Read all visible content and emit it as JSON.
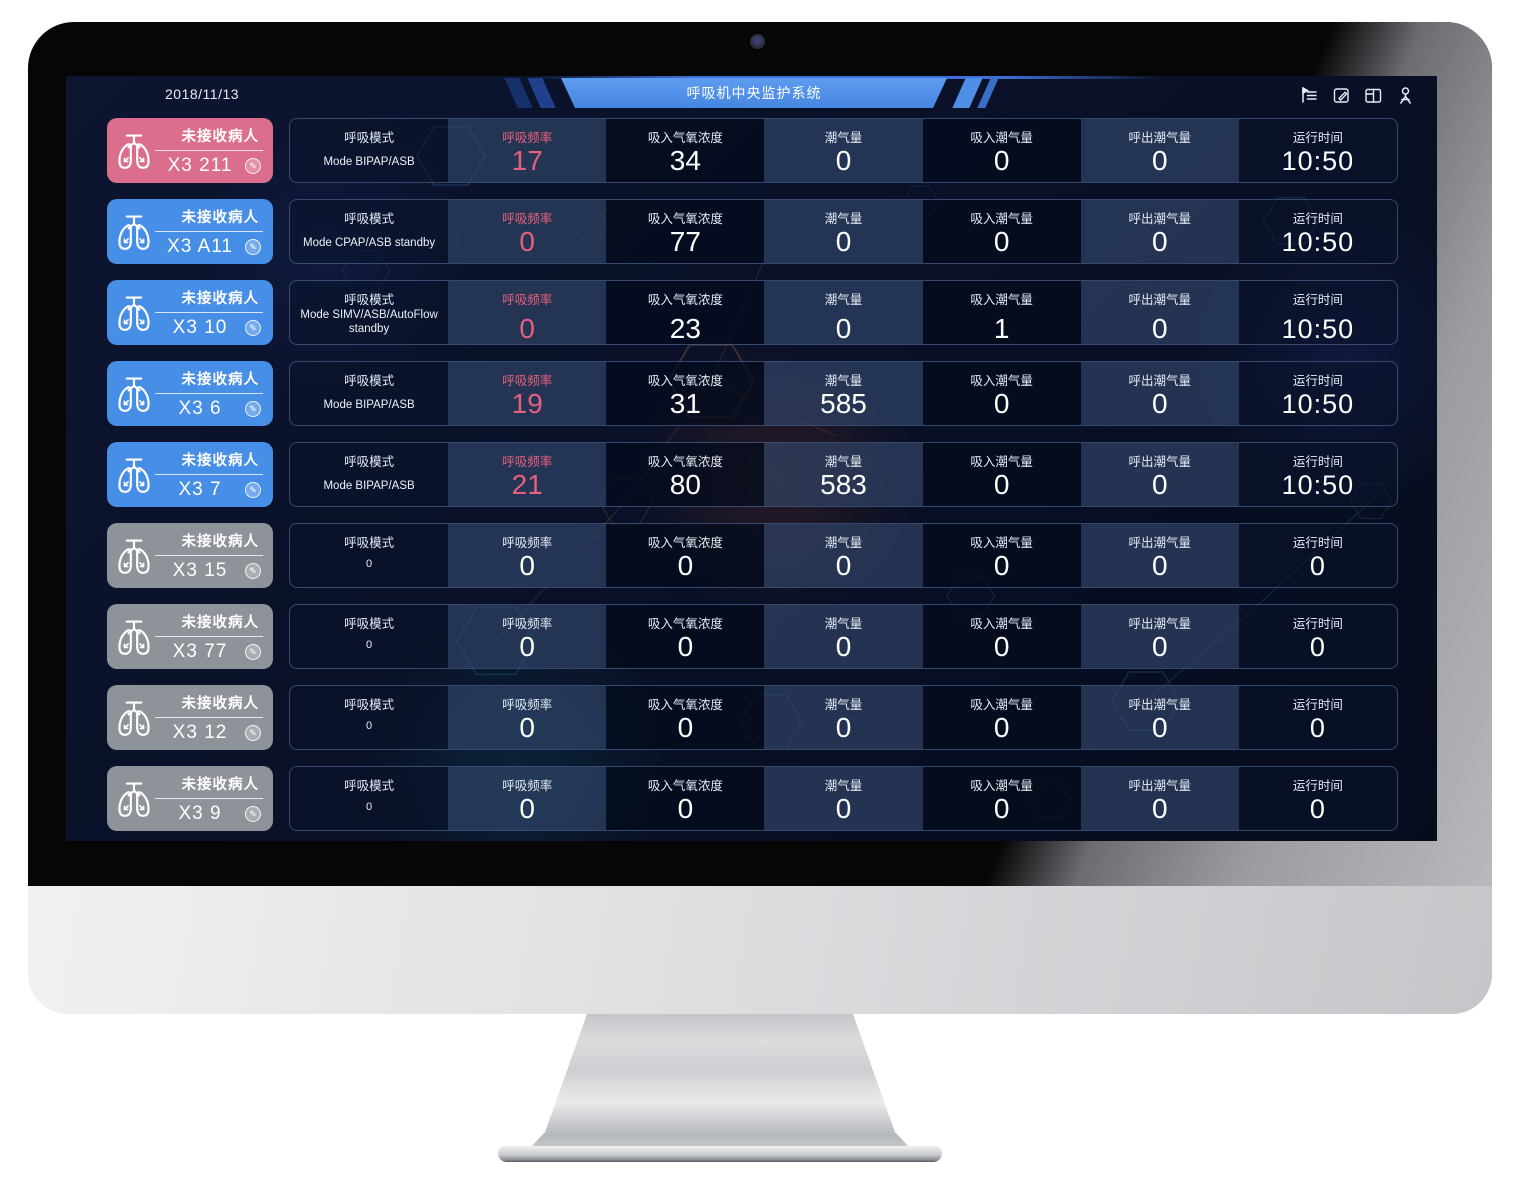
{
  "window": {
    "date": "2018/11/13",
    "title": "呼吸机中央监护系统"
  },
  "toolbar": {
    "icons": [
      "outline-menu-icon",
      "edit-document-icon",
      "layout-columns-icon",
      "user-icon"
    ]
  },
  "icons": {
    "edit_glyph": "✎"
  },
  "table": {
    "columns": [
      {
        "key": "mode",
        "label": "呼吸模式"
      },
      {
        "key": "rate",
        "label": "呼吸频率"
      },
      {
        "key": "fio2",
        "label": "吸入气氧浓度"
      },
      {
        "key": "vt",
        "label": "潮气量"
      },
      {
        "key": "vti",
        "label": "吸入潮气量"
      },
      {
        "key": "vte",
        "label": "呼出潮气量"
      },
      {
        "key": "runtime",
        "label": "运行时间"
      }
    ],
    "rows": [
      {
        "device_id": "X3 211",
        "status": "未接收病人",
        "state": "alarm",
        "mode": "Mode BIPAP/ASB",
        "rate": "17",
        "fio2": "34",
        "vt": "0",
        "vti": "0",
        "vte": "0",
        "runtime": "10:50"
      },
      {
        "device_id": "X3 A11",
        "status": "未接收病人",
        "state": "online",
        "mode": "Mode CPAP/ASB standby",
        "rate": "0",
        "fio2": "77",
        "vt": "0",
        "vti": "0",
        "vte": "0",
        "runtime": "10:50"
      },
      {
        "device_id": "X3 10",
        "status": "未接收病人",
        "state": "online",
        "mode": "Mode SIMV/ASB/AutoFlow standby",
        "rate": "0",
        "fio2": "23",
        "vt": "0",
        "vti": "1",
        "vte": "0",
        "runtime": "10:50"
      },
      {
        "device_id": "X3 6",
        "status": "未接收病人",
        "state": "online",
        "mode": "Mode BIPAP/ASB",
        "rate": "19",
        "fio2": "31",
        "vt": "585",
        "vti": "0",
        "vte": "0",
        "runtime": "10:50"
      },
      {
        "device_id": "X3 7",
        "status": "未接收病人",
        "state": "online",
        "mode": "Mode BIPAP/ASB",
        "rate": "21",
        "fio2": "80",
        "vt": "583",
        "vti": "0",
        "vte": "0",
        "runtime": "10:50"
      },
      {
        "device_id": "X3 15",
        "status": "未接收病人",
        "state": "offline",
        "mode": "0",
        "rate": "0",
        "fio2": "0",
        "vt": "0",
        "vti": "0",
        "vte": "0",
        "runtime": "0"
      },
      {
        "device_id": "X3 77",
        "status": "未接收病人",
        "state": "offline",
        "mode": "0",
        "rate": "0",
        "fio2": "0",
        "vt": "0",
        "vti": "0",
        "vte": "0",
        "runtime": "0"
      },
      {
        "device_id": "X3 12",
        "status": "未接收病人",
        "state": "offline",
        "mode": "0",
        "rate": "0",
        "fio2": "0",
        "vt": "0",
        "vti": "0",
        "vte": "0",
        "runtime": "0"
      },
      {
        "device_id": "X3 9",
        "status": "未接收病人",
        "state": "offline",
        "mode": "0",
        "rate": "0",
        "fio2": "0",
        "vt": "0",
        "vti": "0",
        "vte": "0",
        "runtime": "0"
      }
    ]
  },
  "colors": {
    "alarm_card": "#dc6e8d",
    "online_card": "#478ee6",
    "offline_card": "#8e9299",
    "alert_text": "#e5607c",
    "banner_blue": "#4e90e8"
  }
}
